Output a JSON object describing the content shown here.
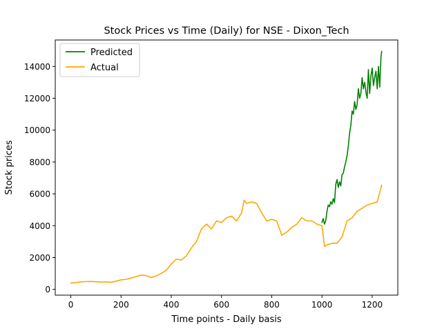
{
  "chart_data": {
    "type": "line",
    "title": "Stock Prices vs Time (Daily) for NSE - Dixon_Tech",
    "xlabel": "Time points - Daily basis",
    "ylabel": "Stock prices",
    "xlim": [
      -62,
      1302
    ],
    "ylim": [
      -360,
      15660
    ],
    "xticks": [
      0,
      200,
      400,
      600,
      800,
      1000,
      1200
    ],
    "yticks": [
      0,
      2000,
      4000,
      6000,
      8000,
      10000,
      12000,
      14000
    ],
    "grid": false,
    "legend": "top-left",
    "series": [
      {
        "name": "Predicted",
        "color": "#008000",
        "x": [
          1000,
          1005,
          1010,
          1015,
          1020,
          1025,
          1030,
          1035,
          1040,
          1045,
          1050,
          1055,
          1060,
          1065,
          1070,
          1075,
          1080,
          1085,
          1090,
          1095,
          1100,
          1105,
          1110,
          1115,
          1120,
          1125,
          1130,
          1135,
          1140,
          1145,
          1150,
          1155,
          1160,
          1165,
          1170,
          1175,
          1180,
          1185,
          1190,
          1195,
          1200,
          1205,
          1210,
          1215,
          1220,
          1225,
          1230,
          1235,
          1238
        ],
        "values": [
          4200,
          4450,
          4100,
          4300,
          4900,
          5300,
          5200,
          5500,
          5350,
          5700,
          5450,
          6600,
          6900,
          6400,
          6750,
          6500,
          7200,
          7300,
          7700,
          8000,
          8400,
          9000,
          9800,
          10300,
          11200,
          11000,
          11800,
          11300,
          11600,
          12600,
          12000,
          12300,
          13300,
          12600,
          13000,
          12400,
          12000,
          13800,
          12300,
          13400,
          13900,
          12800,
          13300,
          13700,
          12600,
          14000,
          12700,
          14600,
          14950
        ]
      },
      {
        "name": "Actual",
        "color": "#ffa500",
        "x": [
          0,
          20,
          40,
          60,
          80,
          100,
          120,
          140,
          160,
          180,
          200,
          220,
          240,
          260,
          280,
          300,
          320,
          340,
          360,
          380,
          400,
          420,
          440,
          460,
          480,
          500,
          520,
          540,
          560,
          580,
          600,
          620,
          640,
          660,
          680,
          690,
          700,
          720,
          740,
          760,
          780,
          800,
          820,
          840,
          860,
          880,
          900,
          920,
          940,
          960,
          980,
          1000,
          1010,
          1020,
          1040,
          1060,
          1080,
          1100,
          1120,
          1140,
          1160,
          1180,
          1200,
          1220,
          1238
        ],
        "values": [
          400,
          430,
          470,
          490,
          500,
          480,
          460,
          470,
          450,
          520,
          600,
          630,
          720,
          800,
          900,
          870,
          750,
          850,
          1000,
          1200,
          1600,
          1900,
          1850,
          2100,
          2600,
          3000,
          3800,
          4100,
          3800,
          4300,
          4200,
          4500,
          4600,
          4300,
          4800,
          5600,
          5400,
          5500,
          5400,
          4800,
          4300,
          4400,
          4300,
          3400,
          3600,
          3900,
          4100,
          4500,
          4300,
          4300,
          4100,
          4000,
          2700,
          2800,
          2900,
          2900,
          3300,
          4300,
          4500,
          4900,
          5100,
          5300,
          5400,
          5500,
          6550
        ]
      }
    ]
  }
}
